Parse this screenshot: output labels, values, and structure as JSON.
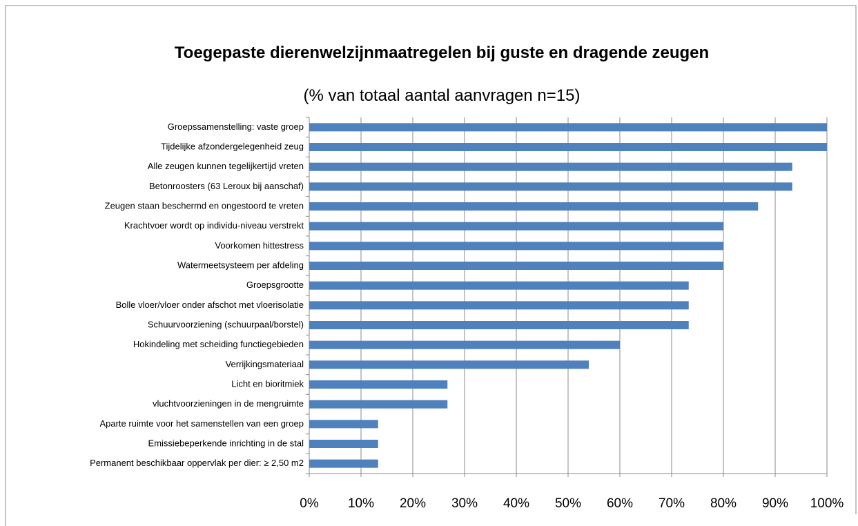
{
  "chart_data": {
    "type": "barh",
    "title": "Toegepaste dierenwelzijnmaatregelen bij guste en dragende zeugen",
    "subtitle": "(% van totaal aantal aanvragen n=15)",
    "categories": [
      "Groepssamenstelling: vaste groep",
      "Tijdelijke afzondergelegenheid zeug",
      "Alle zeugen kunnen tegelijkertijd vreten",
      "Betonroosters (63 Leroux bij aanschaf)",
      "Zeugen staan beschermd en ongestoord te vreten",
      "Krachtvoer wordt op individu-niveau verstrekt",
      "Voorkomen hittestress",
      "Watermeetsysteem per afdeling",
      "Groepsgrootte",
      "Bolle vloer/vloer onder afschot met vloerisolatie",
      "Schuurvoorziening (schuurpaal/borstel)",
      "Hokindeling met scheiding functiegebieden",
      "Verrijkingsmateriaal",
      "Licht en bioritmiek",
      "vluchtvoorzieningen in de mengruimte",
      "Aparte ruimte voor het samenstellen van een groep",
      "Emissiebeperkende inrichting in de stal",
      "Permanent beschikbaar oppervlak per dier: ≥ 2,50 m2"
    ],
    "values": [
      100,
      100,
      93.3,
      93.3,
      86.7,
      80,
      80,
      80,
      73.3,
      73.3,
      73.3,
      60,
      54,
      26.7,
      26.7,
      13.3,
      13.3,
      13.3
    ],
    "color": "#4f81bd",
    "xlim": [
      0,
      100
    ],
    "xticks": [
      {
        "value": 0,
        "label": "0%"
      },
      {
        "value": 10,
        "label": "10%"
      },
      {
        "value": 20,
        "label": "20%"
      },
      {
        "value": 30,
        "label": "30%"
      },
      {
        "value": 40,
        "label": "40%"
      },
      {
        "value": 50,
        "label": "50%"
      },
      {
        "value": 60,
        "label": "60%"
      },
      {
        "value": 70,
        "label": "70%"
      },
      {
        "value": 80,
        "label": "80%"
      },
      {
        "value": 90,
        "label": "90%"
      },
      {
        "value": 100,
        "label": "100%"
      }
    ],
    "grid": true
  }
}
